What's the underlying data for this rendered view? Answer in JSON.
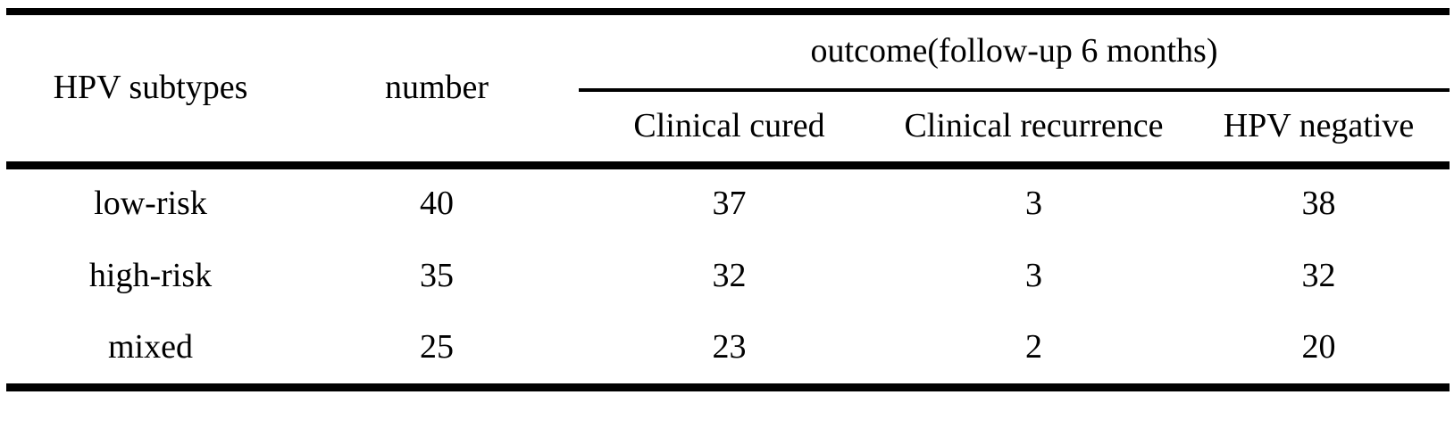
{
  "table": {
    "headers": {
      "hpv_subtypes": "HPV subtypes",
      "number": "number",
      "outcome_group": "outcome(follow-up 6 months)",
      "clinical_cured": "Clinical cured",
      "clinical_recurrence": "Clinical recurrence",
      "hpv_negative": "HPV negative"
    },
    "rows": [
      {
        "subtype": "low-risk",
        "number": "40",
        "clinical_cured": "37",
        "clinical_recurrence": "3",
        "hpv_negative": "38"
      },
      {
        "subtype": "high-risk",
        "number": "35",
        "clinical_cured": "32",
        "clinical_recurrence": "3",
        "hpv_negative": "32"
      },
      {
        "subtype": "mixed",
        "number": "25",
        "clinical_cured": "23",
        "clinical_recurrence": "2",
        "hpv_negative": "20"
      }
    ]
  },
  "chart_data": {
    "type": "table",
    "title": "",
    "columns": [
      "HPV subtypes",
      "number",
      "Clinical cured",
      "Clinical recurrence",
      "HPV negative"
    ],
    "column_group": {
      "label": "outcome(follow-up 6 months)",
      "spans": [
        "Clinical cured",
        "Clinical recurrence",
        "HPV negative"
      ]
    },
    "rows": [
      [
        "low-risk",
        40,
        37,
        3,
        38
      ],
      [
        "high-risk",
        35,
        32,
        3,
        32
      ],
      [
        "mixed",
        25,
        23,
        2,
        20
      ]
    ]
  },
  "colors": {
    "background": "#ffffff",
    "text": "#000000",
    "rule": "#000000"
  }
}
